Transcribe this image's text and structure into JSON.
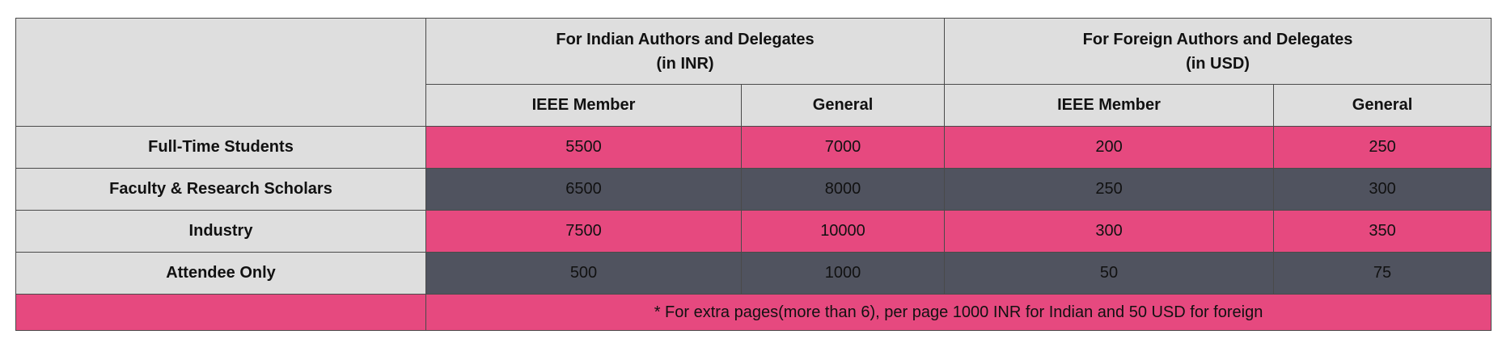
{
  "table": {
    "group_headers": [
      {
        "line1": "For Indian Authors and Delegates",
        "line2": "(in INR)"
      },
      {
        "line1": "For Foreign Authors and Delegates",
        "line2": "(in USD)"
      }
    ],
    "sub_headers": [
      "IEEE Member",
      "General",
      "IEEE Member",
      "General"
    ],
    "rows": [
      {
        "label": "Full-Time Students",
        "values": [
          "5500",
          "7000",
          "200",
          "250"
        ],
        "style": "pink"
      },
      {
        "label": "Faculty & Research Scholars",
        "values": [
          "6500",
          "8000",
          "250",
          "300"
        ],
        "style": "dark"
      },
      {
        "label": "Industry",
        "values": [
          "7500",
          "10000",
          "300",
          "350"
        ],
        "style": "pink"
      },
      {
        "label": "Attendee Only",
        "values": [
          "500",
          "1000",
          "50",
          "75"
        ],
        "style": "dark"
      }
    ],
    "note": "* For extra pages(more than 6), per page 1000 INR for Indian and 50 USD for foreign"
  },
  "colors": {
    "header_bg": "#dedede",
    "pink_row": "#e6497f",
    "dark_row": "#50535f",
    "border": "#4a4a4a"
  }
}
